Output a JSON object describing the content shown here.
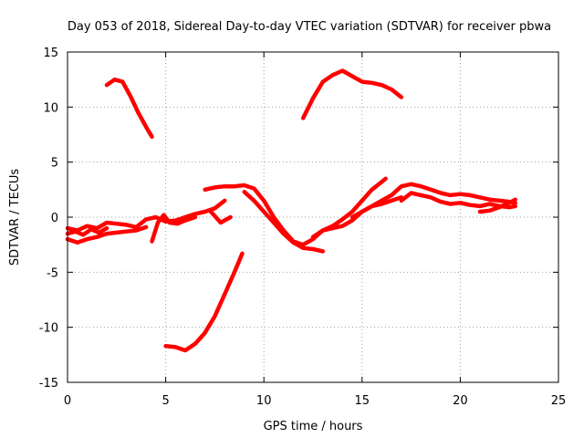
{
  "chart_data": {
    "type": "line",
    "title": "Day 053 of 2018, Sidereal Day-to-day VTEC variation (SDTVAR) for receiver pbwa",
    "xlabel": "GPS time / hours",
    "ylabel": "SDTVAR / TECUs",
    "xlim": [
      0,
      25
    ],
    "ylim": [
      -15,
      15
    ],
    "xticks": [
      "0",
      "5",
      "10",
      "15",
      "20",
      "25"
    ],
    "yticks": [
      "15",
      "10",
      "5",
      "0",
      "-5",
      "-10",
      "-15"
    ],
    "grid": true,
    "series_color": "#ff0000",
    "series": [
      {
        "name": "trace-1",
        "x": [
          2.0,
          2.4,
          2.8,
          3.2,
          3.6,
          4.0,
          4.3
        ],
        "y": [
          12.0,
          12.5,
          12.3,
          11.0,
          9.5,
          8.2,
          7.3
        ]
      },
      {
        "name": "trace-2",
        "x": [
          12.0,
          12.5,
          13.0,
          13.5,
          14.0,
          14.5,
          15.0,
          15.5,
          16.0,
          16.5,
          17.0
        ],
        "y": [
          9.0,
          10.8,
          12.3,
          12.9,
          13.3,
          12.8,
          12.3,
          12.2,
          12.0,
          11.6,
          10.9
        ]
      },
      {
        "name": "trace-3",
        "x": [
          5.0,
          5.5,
          6.0,
          6.5,
          7.0,
          7.5,
          8.0,
          8.5,
          8.9
        ],
        "y": [
          -11.7,
          -11.8,
          -12.1,
          -11.5,
          -10.5,
          -9.0,
          -7.0,
          -5.0,
          -3.3
        ]
      },
      {
        "name": "trace-4",
        "x": [
          0.0,
          0.5,
          1.0,
          1.5,
          2.0,
          2.5,
          3.0,
          3.5,
          4.0,
          4.5,
          5.0,
          5.5,
          6.0,
          6.5,
          7.0,
          7.5,
          8.0
        ],
        "y": [
          -1.0,
          -1.2,
          -0.8,
          -1.0,
          -0.5,
          -0.6,
          -0.7,
          -0.9,
          -0.2,
          0.0,
          -0.4,
          -0.3,
          0.0,
          0.3,
          0.5,
          0.8,
          1.5
        ]
      },
      {
        "name": "trace-5",
        "x": [
          0.0,
          0.5,
          1.0,
          1.5,
          2.0,
          2.5,
          3.0,
          3.5,
          4.0
        ],
        "y": [
          -2.0,
          -2.3,
          -2.0,
          -1.8,
          -1.5,
          -1.4,
          -1.3,
          -1.2,
          -0.9
        ]
      },
      {
        "name": "trace-6",
        "x": [
          0.0,
          0.4,
          0.8,
          1.2,
          1.6,
          2.0
        ],
        "y": [
          -1.5,
          -1.3,
          -1.6,
          -1.1,
          -1.4,
          -1.0
        ]
      },
      {
        "name": "trace-7",
        "x": [
          4.3,
          4.6,
          4.9,
          5.2,
          5.6,
          6.0,
          6.5
        ],
        "y": [
          -2.2,
          -0.5,
          0.2,
          -0.5,
          -0.6,
          -0.3,
          0.0
        ]
      },
      {
        "name": "trace-8",
        "x": [
          7.3,
          7.8,
          8.3
        ],
        "y": [
          0.5,
          -0.5,
          0.0
        ]
      },
      {
        "name": "trace-9",
        "x": [
          7.0,
          7.5,
          8.0,
          8.5,
          9.0,
          9.5,
          10.0,
          10.5,
          11.0,
          11.5,
          12.0,
          12.5,
          13.0,
          13.5,
          14.0,
          14.5,
          15.0,
          15.5,
          16.0,
          16.5,
          17.0
        ],
        "y": [
          2.5,
          2.7,
          2.8,
          2.8,
          2.9,
          2.6,
          1.5,
          0.0,
          -1.2,
          -2.2,
          -2.5,
          -2.0,
          -1.2,
          -1.0,
          -0.8,
          -0.3,
          0.5,
          1.0,
          1.2,
          1.5,
          1.8
        ]
      },
      {
        "name": "trace-10",
        "x": [
          9.0,
          9.5,
          10.0,
          10.5,
          11.0,
          11.5,
          12.0,
          12.5,
          13.0
        ],
        "y": [
          2.3,
          1.5,
          0.5,
          -0.5,
          -1.5,
          -2.3,
          -2.8,
          -2.9,
          -3.1
        ]
      },
      {
        "name": "trace-11",
        "x": [
          12.5,
          13.0,
          13.5,
          14.0,
          14.5,
          15.0,
          15.5,
          16.0,
          16.2
        ],
        "y": [
          -1.8,
          -1.2,
          -0.8,
          -0.2,
          0.5,
          1.5,
          2.5,
          3.2,
          3.5
        ]
      },
      {
        "name": "trace-12",
        "x": [
          14.5,
          15.0,
          15.5,
          16.0,
          16.5,
          17.0,
          17.5,
          18.0,
          18.5,
          19.0,
          19.5,
          20.0,
          20.5,
          21.0,
          21.5,
          22.0,
          22.5,
          22.8
        ],
        "y": [
          0.0,
          0.5,
          1.0,
          1.5,
          2.0,
          2.8,
          3.0,
          2.8,
          2.5,
          2.2,
          2.0,
          2.1,
          2.0,
          1.8,
          1.6,
          1.5,
          1.4,
          1.3
        ]
      },
      {
        "name": "trace-13",
        "x": [
          17.0,
          17.5,
          18.0,
          18.5,
          19.0,
          19.5,
          20.0,
          20.5,
          21.0,
          21.5,
          22.0,
          22.5,
          22.8
        ],
        "y": [
          1.5,
          2.2,
          2.0,
          1.8,
          1.4,
          1.2,
          1.3,
          1.1,
          1.0,
          1.2,
          1.0,
          0.9,
          1.0
        ]
      },
      {
        "name": "trace-14",
        "x": [
          21.0,
          21.5,
          22.0,
          22.5,
          22.8
        ],
        "y": [
          0.5,
          0.6,
          0.9,
          1.3,
          1.6
        ]
      }
    ]
  }
}
